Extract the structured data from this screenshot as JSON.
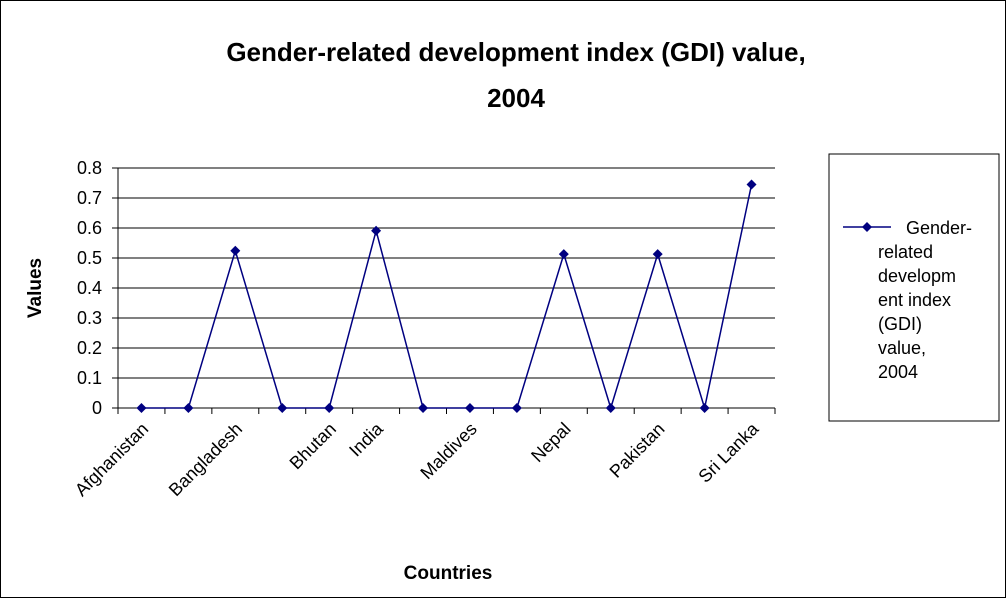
{
  "chart_data": {
    "type": "line",
    "title_lines": [
      "Gender-related development index (GDI) value,",
      "2004"
    ],
    "xlabel": "Countries",
    "ylabel": "Values",
    "ylim": [
      0,
      0.8
    ],
    "yticks": [
      "0",
      "0.1",
      "0.2",
      "0.3",
      "0.4",
      "0.5",
      "0.6",
      "0.7",
      "0.8"
    ],
    "grid": true,
    "legend_position": "right",
    "x": [
      "Afghanistan",
      "",
      "Bangladesh",
      "",
      "Bhutan",
      "India",
      "",
      "Maldives",
      "",
      "Nepal",
      "",
      "Pakistan",
      "",
      "Sri Lanka"
    ],
    "series": [
      {
        "name": "Gender-related development index (GDI) value, 2004",
        "legend_lines": [
          "Gender-",
          "related",
          "developm",
          "ent index",
          "(GDI)",
          "value,",
          "2004"
        ],
        "color": "#000080",
        "values": [
          0,
          0,
          0.524,
          0,
          0,
          0.591,
          0,
          0,
          0,
          0.513,
          0,
          0.513,
          0,
          0.745
        ]
      }
    ]
  }
}
